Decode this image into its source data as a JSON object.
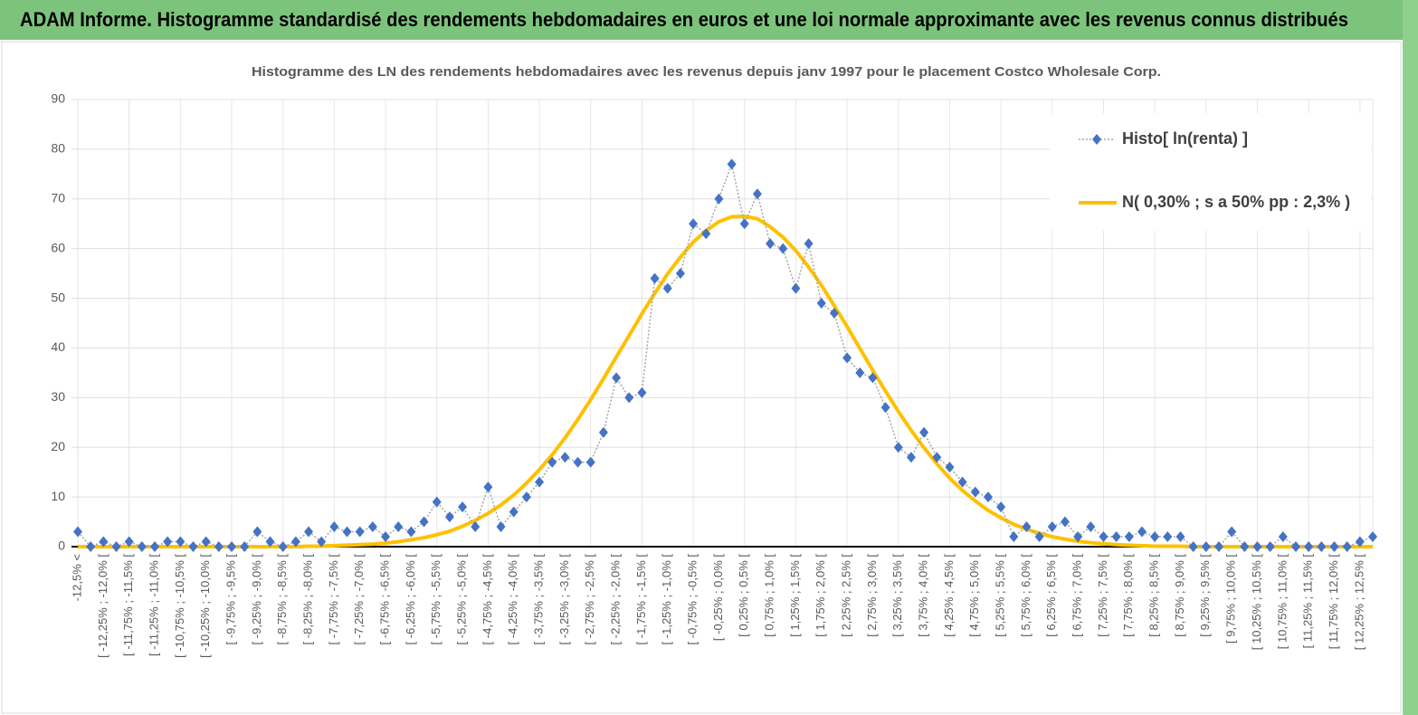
{
  "chart_data": {
    "type": "line",
    "header": "ADAM Informe. Histogramme standardisé des rendements hebdomadaires en euros et une loi normale approximante avec les revenus connus distribués",
    "title": "Histogramme  des LN des rendements hebdomadaires avec les revenus depuis janv 1997 pour le placement Costco Wholesale Corp.",
    "categories": [
      "-12,5% <",
      null,
      "[ -12,25% ; -12,0% [",
      null,
      "[ -11,75% ; -11,5% [",
      null,
      "[ -11,25% ; -11,0% [",
      null,
      "[ -10,75% ; -10,5% [",
      null,
      "[ -10,25% ; -10,0% [",
      null,
      "[ -9,75% ; -9,5% [",
      null,
      "[ -9,25% ; -9,0% [",
      null,
      "[ -8,75% ; -8,5% [",
      null,
      "[ -8,25% ; -8,0% [",
      null,
      "[ -7,75% ; -7,5% [",
      null,
      "[ -7,25% ; -7,0% [",
      null,
      "[ -6,75% ; -6,5% [",
      null,
      "[ -6,25% ; -6,0% [",
      null,
      "[ -5,75% ; -5,5% [",
      null,
      "[ -5,25% ; -5,0% [",
      null,
      "[ -4,75% ; -4,5% [",
      null,
      "[ -4,25% ; -4,0% [",
      null,
      "[ -3,75% ; -3,5% [",
      null,
      "[ -3,25% ; -3,0% [",
      null,
      "[ -2,75% ; -2,5% [",
      null,
      "[ -2,25% ; -2,0% [",
      null,
      "[ -1,75% ; -1,5% [",
      null,
      "[ -1,25% ; -1,0% [",
      null,
      "[ -0,75% ; -0,5% [",
      null,
      "[ -0,25% ; 0,0% [",
      null,
      "[ 0,25% ; 0,5% [",
      null,
      "[ 0,75% ; 1,0% [",
      null,
      "[ 1,25% ; 1,5% [",
      null,
      "[ 1,75% ; 2,0% [",
      null,
      "[ 2,25% ; 2,5% [",
      null,
      "[ 2,75% ; 3,0% [",
      null,
      "[ 3,25% ; 3,5% [",
      null,
      "[ 3,75% ; 4,0% [",
      null,
      "[ 4,25% ; 4,5% [",
      null,
      "[ 4,75% ; 5,0% [",
      null,
      "[ 5,25% ; 5,5% [",
      null,
      "[ 5,75% ; 6,0% [",
      null,
      "[ 6,25% ; 6,5% [",
      null,
      "[ 6,75% ; 7,0% [",
      null,
      "[ 7,25% ; 7,5% [",
      null,
      "[ 7,75% ; 8,0% [",
      null,
      "[ 8,25% ; 8,5% [",
      null,
      "[ 8,75% ; 9,0% [",
      null,
      "[ 9,25% ; 9,5% [",
      null,
      "[ 9,75% ; 10,0% [",
      null,
      "[ 10,25% ; 10,5% [",
      null,
      "[ 10,75% ; 11,0% [",
      null,
      "[ 11,25% ; 11,5% [",
      null,
      "[ 11,75% ; 12,0% [",
      null,
      "[ 12,25% ; 12,5% [",
      null
    ],
    "series": [
      {
        "name": "Histo[ ln(renta) ]",
        "color": "#4472c4",
        "values": [
          3,
          0,
          1,
          0,
          1,
          0,
          0,
          1,
          1,
          0,
          1,
          0,
          0,
          0,
          3,
          1,
          0,
          1,
          3,
          1,
          4,
          3,
          3,
          4,
          2,
          4,
          3,
          5,
          9,
          6,
          8,
          4,
          12,
          4,
          7,
          10,
          13,
          17,
          18,
          17,
          17,
          23,
          34,
          30,
          31,
          54,
          52,
          55,
          65,
          63,
          70,
          77,
          65,
          71,
          61,
          60,
          52,
          61,
          49,
          47,
          38,
          35,
          34,
          28,
          20,
          18,
          23,
          18,
          16,
          13,
          11,
          10,
          8,
          2,
          4,
          2,
          4,
          5,
          2,
          4,
          2,
          2,
          2,
          3,
          2,
          2,
          2,
          0,
          0,
          0,
          3,
          0,
          0,
          0,
          2,
          0,
          0,
          0,
          0,
          0,
          1,
          2
        ]
      },
      {
        "name": "N( 0,30% ; s a 50% pp : 2,3% )",
        "color": "#ffc000",
        "values": [
          0,
          0,
          0,
          0,
          0,
          0,
          0,
          0,
          0,
          0,
          0,
          0,
          0,
          0,
          0,
          0,
          0,
          0,
          0.1,
          0.1,
          0.2,
          0.3,
          0.4,
          0.5,
          0.7,
          1.0,
          1.4,
          1.8,
          2.4,
          3.1,
          4.1,
          5.3,
          6.7,
          8.4,
          10.4,
          12.8,
          15.5,
          18.5,
          21.9,
          25.6,
          29.6,
          33.8,
          38.2,
          42.5,
          46.9,
          51.0,
          54.9,
          58.3,
          61.3,
          63.6,
          65.4,
          66.4,
          66.5,
          66.0,
          64.4,
          62.3,
          59.6,
          56.3,
          52.6,
          48.5,
          44.3,
          39.9,
          35.5,
          31.3,
          27.2,
          23.4,
          19.9,
          16.7,
          13.8,
          11.3,
          9.2,
          7.3,
          5.8,
          4.5,
          3.5,
          2.7,
          2.0,
          1.5,
          1.1,
          0.8,
          0.6,
          0.4,
          0.3,
          0.2,
          0.1,
          0.1,
          0.1,
          0,
          0,
          0,
          0,
          0,
          0,
          0,
          0,
          0,
          0,
          0,
          0,
          0,
          0,
          0
        ]
      }
    ],
    "ylim": [
      0,
      90
    ],
    "yticks": [
      0,
      10,
      20,
      30,
      40,
      50,
      60,
      70,
      80,
      90
    ],
    "grid": true,
    "legend": "upper right"
  }
}
